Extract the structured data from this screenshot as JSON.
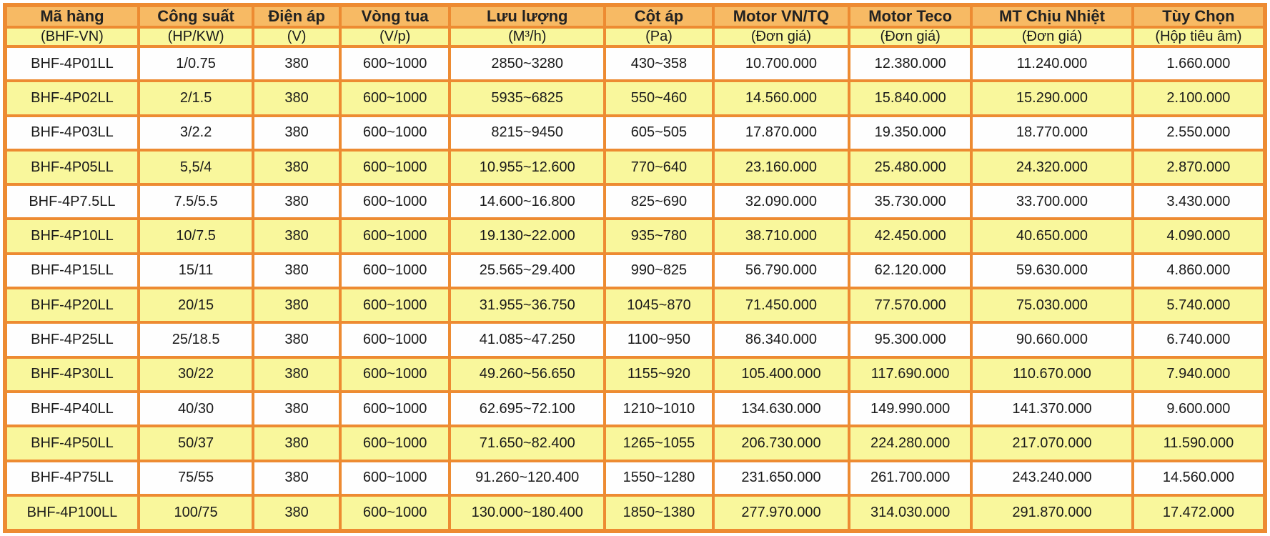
{
  "colors": {
    "border_orange": "#ED8B32",
    "header_orange": "#F7BA64",
    "stripe_yellow": "#F9F79C",
    "row_white": "#FEFEFE",
    "text": "#1A1A1A"
  },
  "table": {
    "columns": [
      {
        "title": "Mã hàng",
        "unit": "(BHF-VN)"
      },
      {
        "title": "Công suất",
        "unit": "(HP/KW)"
      },
      {
        "title": "Điện áp",
        "unit": "(V)"
      },
      {
        "title": "Vòng tua",
        "unit": "(V/p)"
      },
      {
        "title": "Lưu lượng",
        "unit": "(M³/h)"
      },
      {
        "title": "Cột áp",
        "unit": "(Pa)"
      },
      {
        "title": "Motor VN/TQ",
        "unit": "(Đơn giá)"
      },
      {
        "title": "Motor Teco",
        "unit": "(Đơn giá)"
      },
      {
        "title": "MT Chịu Nhiệt",
        "unit": "(Đơn giá)"
      },
      {
        "title": "Tùy Chọn",
        "unit": "(Hộp tiêu âm)"
      }
    ],
    "rows": [
      [
        "BHF-4P01LL",
        "1/0.75",
        "380",
        "600~1000",
        "2850~3280",
        "430~358",
        "10.700.000",
        "12.380.000",
        "11.240.000",
        "1.660.000"
      ],
      [
        "BHF-4P02LL",
        "2/1.5",
        "380",
        "600~1000",
        "5935~6825",
        "550~460",
        "14.560.000",
        "15.840.000",
        "15.290.000",
        "2.100.000"
      ],
      [
        "BHF-4P03LL",
        "3/2.2",
        "380",
        "600~1000",
        "8215~9450",
        "605~505",
        "17.870.000",
        "19.350.000",
        "18.770.000",
        "2.550.000"
      ],
      [
        "BHF-4P05LL",
        "5,5/4",
        "380",
        "600~1000",
        "10.955~12.600",
        "770~640",
        "23.160.000",
        "25.480.000",
        "24.320.000",
        "2.870.000"
      ],
      [
        "BHF-4P7.5LL",
        "7.5/5.5",
        "380",
        "600~1000",
        "14.600~16.800",
        "825~690",
        "32.090.000",
        "35.730.000",
        "33.700.000",
        "3.430.000"
      ],
      [
        "BHF-4P10LL",
        "10/7.5",
        "380",
        "600~1000",
        "19.130~22.000",
        "935~780",
        "38.710.000",
        "42.450.000",
        "40.650.000",
        "4.090.000"
      ],
      [
        "BHF-4P15LL",
        "15/11",
        "380",
        "600~1000",
        "25.565~29.400",
        "990~825",
        "56.790.000",
        "62.120.000",
        "59.630.000",
        "4.860.000"
      ],
      [
        "BHF-4P20LL",
        "20/15",
        "380",
        "600~1000",
        "31.955~36.750",
        "1045~870",
        "71.450.000",
        "77.570.000",
        "75.030.000",
        "5.740.000"
      ],
      [
        "BHF-4P25LL",
        "25/18.5",
        "380",
        "600~1000",
        "41.085~47.250",
        "1100~950",
        "86.340.000",
        "95.300.000",
        "90.660.000",
        "6.740.000"
      ],
      [
        "BHF-4P30LL",
        "30/22",
        "380",
        "600~1000",
        "49.260~56.650",
        "1155~920",
        "105.400.000",
        "117.690.000",
        "110.670.000",
        "7.940.000"
      ],
      [
        "BHF-4P40LL",
        "40/30",
        "380",
        "600~1000",
        "62.695~72.100",
        "1210~1010",
        "134.630.000",
        "149.990.000",
        "141.370.000",
        "9.600.000"
      ],
      [
        "BHF-4P50LL",
        "50/37",
        "380",
        "600~1000",
        "71.650~82.400",
        "1265~1055",
        "206.730.000",
        "224.280.000",
        "217.070.000",
        "11.590.000"
      ],
      [
        "BHF-4P75LL",
        "75/55",
        "380",
        "600~1000",
        "91.260~120.400",
        "1550~1280",
        "231.650.000",
        "261.700.000",
        "243.240.000",
        "14.560.000"
      ],
      [
        "BHF-4P100LL",
        "100/75",
        "380",
        "600~1000",
        "130.000~180.400",
        "1850~1380",
        "277.970.000",
        "314.030.000",
        "291.870.000",
        "17.472.000"
      ]
    ]
  }
}
